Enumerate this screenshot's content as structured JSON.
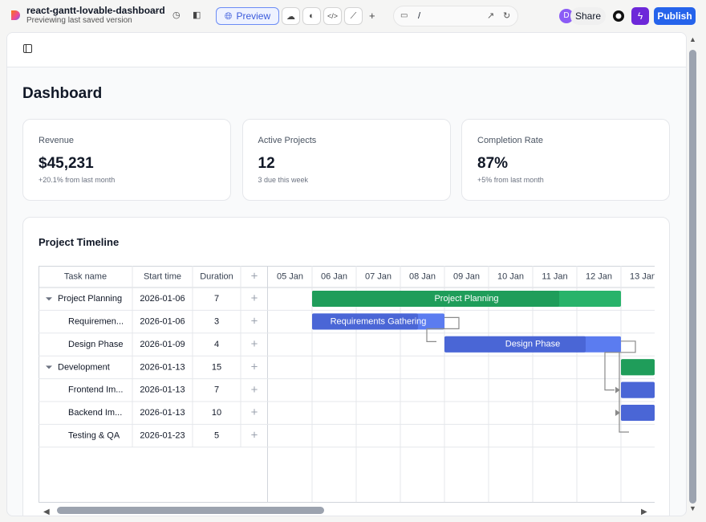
{
  "app": {
    "project_name": "react-gantt-lovable-dashboard",
    "subtitle": "Previewing last saved version",
    "preview": "Preview",
    "url": "/",
    "avatar": "D",
    "share": "Share",
    "publish": "Publish"
  },
  "page": {
    "title": "Dashboard"
  },
  "cards": [
    {
      "label": "Revenue",
      "value": "$45,231",
      "note": "+20.1% from last month"
    },
    {
      "label": "Active Projects",
      "value": "12",
      "note": "3 due this week"
    },
    {
      "label": "Completion Rate",
      "value": "87%",
      "note": "+5% from last month"
    }
  ],
  "timeline": {
    "title": "Project Timeline",
    "columns": [
      "Task name",
      "Start time",
      "Duration"
    ],
    "dates": [
      "05 Jan",
      "06 Jan",
      "07 Jan",
      "08 Jan",
      "09 Jan",
      "10 Jan",
      "11 Jan",
      "12 Jan",
      "13 Jan"
    ],
    "tasks": [
      {
        "name": "Project Planning",
        "start": "2026-01-06",
        "duration": 7,
        "parent": true,
        "bar_label": "Project Planning"
      },
      {
        "name": "Requiremen...",
        "start": "2026-01-06",
        "duration": 3,
        "parent": false,
        "bar_label": "Requirements Gathering"
      },
      {
        "name": "Design Phase",
        "start": "2026-01-09",
        "duration": 4,
        "parent": false,
        "bar_label": "Design Phase"
      },
      {
        "name": "Development",
        "start": "2026-01-13",
        "duration": 15,
        "parent": true
      },
      {
        "name": "Frontend Im...",
        "start": "2026-01-13",
        "duration": 7,
        "parent": false
      },
      {
        "name": "Backend Im...",
        "start": "2026-01-13",
        "duration": 10,
        "parent": false
      },
      {
        "name": "Testing & QA",
        "start": "2026-01-23",
        "duration": 5,
        "parent": false
      }
    ]
  }
}
